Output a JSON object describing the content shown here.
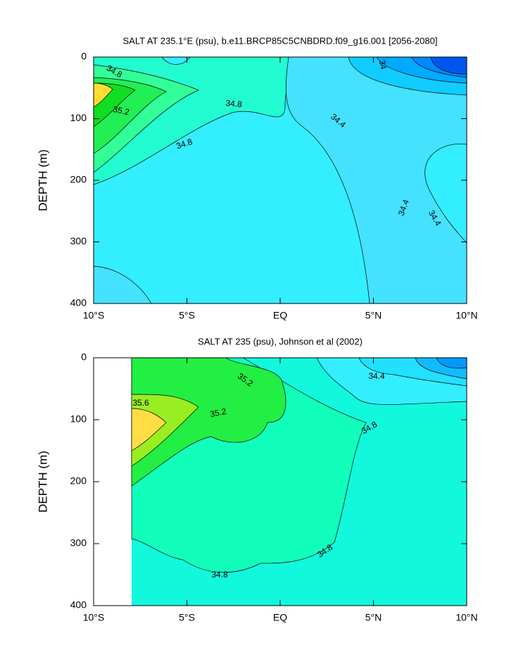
{
  "chart_data": [
    {
      "type": "contour",
      "title": "SALT AT 235.1°E (psu), b.e11.BRCP85C5CNBDRD.f09_g16.001 [2056-2080]",
      "y_label": "DEPTH (m)",
      "xlim": [
        -10,
        10
      ],
      "xticks": [
        {
          "value": -10,
          "label": "10°S"
        },
        {
          "value": -5,
          "label": "5°S"
        },
        {
          "value": 0,
          "label": "EQ"
        },
        {
          "value": 5,
          "label": "5°N"
        },
        {
          "value": 10,
          "label": "10°N"
        }
      ],
      "ylim": [
        0,
        400
      ],
      "yticks": [
        0,
        100,
        200,
        300,
        400
      ],
      "contour_labels": [
        34.8,
        34.8,
        35.2,
        34.8,
        34.4,
        34,
        34.4,
        34.4
      ]
    },
    {
      "type": "contour",
      "title": "SALT AT 235 (psu), Johnson et al (2002)",
      "y_label": "DEPTH (m)",
      "xlim": [
        -10,
        10
      ],
      "xticks": [
        {
          "value": -10,
          "label": "10°S"
        },
        {
          "value": -5,
          "label": "5°S"
        },
        {
          "value": 0,
          "label": "EQ"
        },
        {
          "value": 5,
          "label": "5°N"
        },
        {
          "value": 10,
          "label": "10°N"
        }
      ],
      "ylim": [
        0,
        400
      ],
      "yticks": [
        0,
        100,
        200,
        300,
        400
      ],
      "contour_labels": [
        35.2,
        34.4,
        35.6,
        35.2,
        34.8,
        34.8,
        34.8
      ]
    }
  ]
}
